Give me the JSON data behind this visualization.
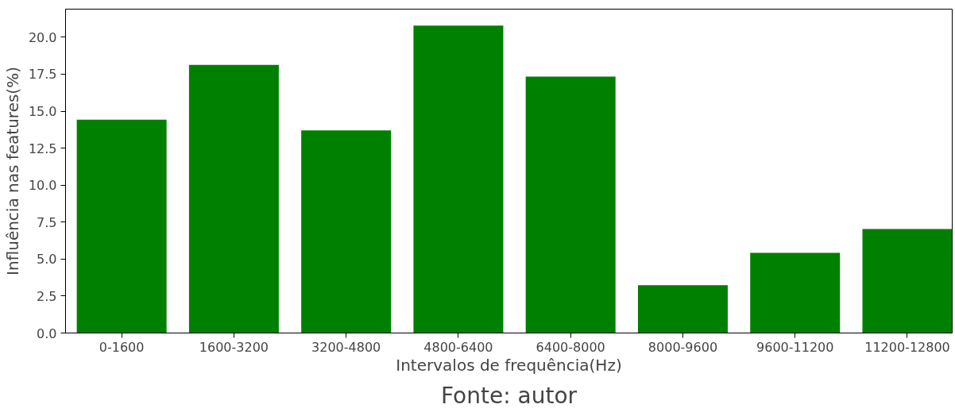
{
  "chart_data": {
    "type": "bar",
    "xlabel": "Intervalos de frequência(Hz)",
    "ylabel": "Influência nas features(%)",
    "categories": [
      "0-1600",
      "1600-3200",
      "3200-4800",
      "4800-6400",
      "6400-8000",
      "8000-9600",
      "9600-11200",
      "11200-12800"
    ],
    "values": [
      14.43,
      18.13,
      13.7,
      20.78,
      17.34,
      3.23,
      5.42,
      7.03
    ],
    "color": "#008000",
    "ylim": [
      0,
      21.9
    ],
    "yticks": [
      {
        "value": 0,
        "label": "0.0"
      },
      {
        "value": 2.5,
        "label": "2.5"
      },
      {
        "value": 5,
        "label": "5.0"
      },
      {
        "value": 7.5,
        "label": "7.5"
      },
      {
        "value": 10,
        "label": "10.0"
      },
      {
        "value": 12.5,
        "label": "12.5"
      },
      {
        "value": 15,
        "label": "15.0"
      },
      {
        "value": 17.5,
        "label": "17.5"
      },
      {
        "value": 20,
        "label": "20.0"
      }
    ],
    "grid": false,
    "annotations": [
      "Fonte: autor"
    ]
  }
}
